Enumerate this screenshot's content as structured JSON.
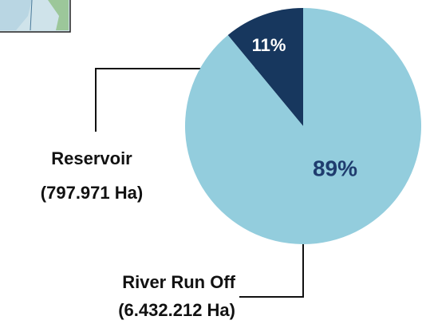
{
  "chart_data": {
    "type": "pie",
    "categories": [
      "Reservoir",
      "River Run Off"
    ],
    "details": [
      "(797.971 Ha)",
      "(6.432.212 Ha)"
    ],
    "values": [
      11,
      89
    ],
    "value_labels": [
      "11%",
      "89%"
    ],
    "colors": [
      "#17375e",
      "#93cddd"
    ],
    "value_label_colors": [
      "#ffffff",
      "#1f3c6e"
    ]
  }
}
